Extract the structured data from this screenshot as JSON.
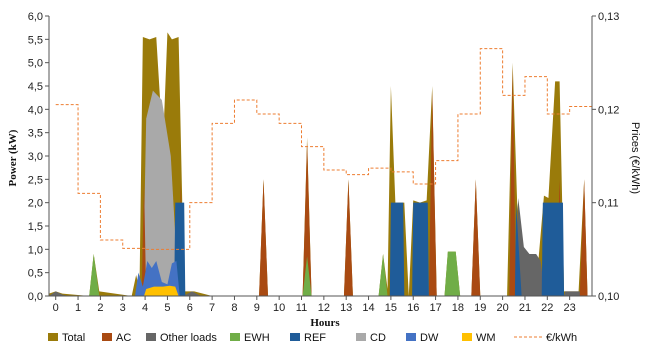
{
  "chart_data": {
    "type": "area",
    "title": "",
    "xlabel": "Hours",
    "ylabel": "Power (kW)",
    "y2label": "Prices (€/kWh)",
    "xlim": [
      -0.3,
      24.0
    ],
    "ylim": [
      0,
      6.0
    ],
    "y2lim": [
      0.1,
      0.13
    ],
    "xticks": [
      0,
      1,
      2,
      3,
      4,
      5,
      6,
      7,
      8,
      9,
      10,
      11,
      12,
      13,
      14,
      15,
      16,
      17,
      18,
      19,
      20,
      21,
      22,
      23
    ],
    "yticks": [
      0,
      0.5,
      1,
      1.5,
      2,
      2.5,
      3,
      3.5,
      4,
      4.5,
      5,
      5.5,
      6
    ],
    "ytick_labels": [
      "0,0",
      "0,5",
      "1,0",
      "1,5",
      "2,0",
      "2,5",
      "3,0",
      "3,5",
      "4,0",
      "4,5",
      "5,0",
      "5,5",
      "6,0"
    ],
    "y2ticks": [
      0.1,
      0.11,
      0.12,
      0.13
    ],
    "y2tick_labels": [
      "0,10",
      "0,11",
      "0,12",
      "0,13"
    ],
    "grid": false,
    "legend_position": "bottom",
    "series": [
      {
        "name": "Total",
        "kind": "area",
        "axis": "left",
        "color": "#9A7B0A",
        "points": [
          [
            -0.3,
            0.05
          ],
          [
            0,
            0.1
          ],
          [
            0.3,
            0.05
          ],
          [
            1.5,
            0
          ],
          [
            1.7,
            0.9
          ],
          [
            1.95,
            0.1
          ],
          [
            3.4,
            0
          ],
          [
            3.6,
            0.45
          ],
          [
            3.75,
            0.15
          ],
          [
            3.9,
            5.55
          ],
          [
            4.2,
            5.5
          ],
          [
            4.5,
            5.55
          ],
          [
            4.8,
            3.2
          ],
          [
            5.0,
            5.65
          ],
          [
            5.2,
            5.5
          ],
          [
            5.5,
            5.55
          ],
          [
            5.75,
            0.1
          ],
          [
            6.2,
            0.1
          ],
          [
            7.0,
            0
          ],
          [
            9.1,
            0
          ],
          [
            9.3,
            2.5
          ],
          [
            9.5,
            0
          ],
          [
            11.05,
            0
          ],
          [
            11.25,
            3.4
          ],
          [
            11.45,
            0
          ],
          [
            12.9,
            0
          ],
          [
            13.1,
            2.5
          ],
          [
            13.3,
            0
          ],
          [
            14.45,
            0
          ],
          [
            14.65,
            0.9
          ],
          [
            14.85,
            0.15
          ],
          [
            15.0,
            4.5
          ],
          [
            15.2,
            2.0
          ],
          [
            15.6,
            2.0
          ],
          [
            15.8,
            0
          ],
          [
            16.0,
            2.05
          ],
          [
            16.3,
            2.0
          ],
          [
            16.6,
            2.05
          ],
          [
            16.85,
            4.5
          ],
          [
            17.05,
            0
          ],
          [
            17.4,
            0
          ],
          [
            17.55,
            0.95
          ],
          [
            17.9,
            0.95
          ],
          [
            18.1,
            0
          ],
          [
            18.6,
            0
          ],
          [
            18.8,
            2.5
          ],
          [
            19.0,
            0
          ],
          [
            20.2,
            0
          ],
          [
            20.45,
            5.0
          ],
          [
            20.65,
            2.0
          ],
          [
            20.85,
            1.05
          ],
          [
            21.1,
            0.9
          ],
          [
            21.4,
            0.9
          ],
          [
            21.6,
            0.75
          ],
          [
            21.85,
            2.15
          ],
          [
            22.05,
            2.1
          ],
          [
            22.35,
            4.6
          ],
          [
            22.55,
            4.6
          ],
          [
            22.75,
            0.1
          ],
          [
            23.4,
            0.1
          ],
          [
            23.65,
            2.5
          ],
          [
            23.8,
            0
          ]
        ]
      },
      {
        "name": "CD",
        "kind": "area",
        "axis": "left",
        "color": "#A9A9A9",
        "points": [
          [
            3.9,
            0.1
          ],
          [
            4.05,
            3.8
          ],
          [
            4.35,
            4.4
          ],
          [
            4.75,
            4.2
          ],
          [
            5.15,
            3.0
          ],
          [
            5.35,
            1.3
          ],
          [
            5.45,
            0.1
          ]
        ]
      },
      {
        "name": "Other loads",
        "kind": "area",
        "axis": "left",
        "color": "#666666",
        "points": [
          [
            -0.3,
            0
          ],
          [
            0,
            0.1
          ],
          [
            0.3,
            0.03
          ],
          [
            0.6,
            0
          ],
          [
            5.7,
            0
          ],
          [
            6.1,
            0.1
          ],
          [
            6.5,
            0
          ],
          [
            20.5,
            0
          ],
          [
            20.7,
            2.1
          ],
          [
            20.95,
            1.05
          ],
          [
            21.2,
            0.9
          ],
          [
            21.5,
            0.9
          ],
          [
            21.7,
            0.75
          ],
          [
            21.9,
            0
          ],
          [
            22.75,
            0
          ],
          [
            22.8,
            0.1
          ],
          [
            23.45,
            0.1
          ],
          [
            23.5,
            0
          ]
        ]
      },
      {
        "name": "AC",
        "kind": "area",
        "axis": "left",
        "color": "#A94A12",
        "points": [
          [
            3.85,
            0
          ],
          [
            3.95,
            2.5
          ],
          [
            4.05,
            0
          ],
          [
            5.5,
            0
          ],
          [
            5.6,
            2.5
          ],
          [
            5.7,
            0
          ],
          [
            9.1,
            0
          ],
          [
            9.3,
            2.5
          ],
          [
            9.5,
            0
          ],
          [
            11.05,
            0
          ],
          [
            11.25,
            3.3
          ],
          [
            11.45,
            0
          ],
          [
            12.9,
            0
          ],
          [
            13.1,
            2.5
          ],
          [
            13.3,
            0
          ],
          [
            16.7,
            0
          ],
          [
            16.85,
            4.4
          ],
          [
            17.05,
            0
          ],
          [
            18.6,
            0
          ],
          [
            18.8,
            2.5
          ],
          [
            19.0,
            0
          ],
          [
            20.3,
            0
          ],
          [
            20.45,
            4.9
          ],
          [
            20.6,
            0
          ],
          [
            22.4,
            0
          ],
          [
            22.55,
            2.5
          ],
          [
            22.7,
            0
          ],
          [
            23.45,
            0
          ],
          [
            23.65,
            2.5
          ],
          [
            23.8,
            0
          ]
        ]
      },
      {
        "name": "REF",
        "kind": "area",
        "axis": "left",
        "color": "#1F5C99",
        "points": [
          [
            5.3,
            0
          ],
          [
            5.35,
            2.0
          ],
          [
            5.75,
            2.0
          ],
          [
            5.8,
            0
          ],
          [
            14.95,
            0
          ],
          [
            15.0,
            2.0
          ],
          [
            15.55,
            2.0
          ],
          [
            15.6,
            0
          ],
          [
            15.95,
            0
          ],
          [
            16.0,
            2.0
          ],
          [
            16.65,
            2.0
          ],
          [
            16.7,
            0
          ],
          [
            20.55,
            0
          ],
          [
            20.6,
            2.0
          ],
          [
            20.85,
            0
          ],
          [
            21.75,
            0
          ],
          [
            21.8,
            2.0
          ],
          [
            22.7,
            2.0
          ],
          [
            22.75,
            0
          ]
        ]
      },
      {
        "name": "DW",
        "kind": "area",
        "axis": "left",
        "color": "#4472C4",
        "points": [
          [
            3.55,
            0
          ],
          [
            3.7,
            0.5
          ],
          [
            3.9,
            0.2
          ],
          [
            4.1,
            0.75
          ],
          [
            4.3,
            0.6
          ],
          [
            4.5,
            0.75
          ],
          [
            4.75,
            0.3
          ],
          [
            5.0,
            0.25
          ],
          [
            5.2,
            0.7
          ],
          [
            5.4,
            0.75
          ],
          [
            5.55,
            0
          ]
        ]
      },
      {
        "name": "EWH",
        "kind": "area",
        "axis": "left",
        "color": "#70AD47",
        "points": [
          [
            1.5,
            0
          ],
          [
            1.7,
            0.9
          ],
          [
            1.95,
            0
          ],
          [
            11.05,
            0
          ],
          [
            11.25,
            0.85
          ],
          [
            11.45,
            0
          ],
          [
            14.45,
            0
          ],
          [
            14.65,
            0.9
          ],
          [
            14.85,
            0
          ],
          [
            17.4,
            0
          ],
          [
            17.55,
            0.95
          ],
          [
            17.9,
            0.95
          ],
          [
            18.1,
            0
          ]
        ]
      },
      {
        "name": "WM",
        "kind": "area",
        "axis": "left",
        "color": "#FFC000",
        "points": [
          [
            3.95,
            0
          ],
          [
            4.05,
            0.15
          ],
          [
            4.4,
            0.2
          ],
          [
            4.8,
            0.2
          ],
          [
            5.1,
            0.22
          ],
          [
            5.35,
            0.2
          ],
          [
            5.5,
            0
          ]
        ]
      },
      {
        "name": "€/kWh",
        "kind": "line",
        "axis": "right",
        "color": "#ED7D31",
        "points": [
          [
            0,
            0.1205
          ],
          [
            1,
            0.1205
          ],
          [
            1,
            0.111
          ],
          [
            2,
            0.111
          ],
          [
            2,
            0.106
          ],
          [
            3,
            0.106
          ],
          [
            3,
            0.1051
          ],
          [
            4,
            0.1051
          ],
          [
            4,
            0.105
          ],
          [
            6,
            0.105
          ],
          [
            6,
            0.11
          ],
          [
            7,
            0.11
          ],
          [
            7,
            0.1185
          ],
          [
            8,
            0.1185
          ],
          [
            8,
            0.121
          ],
          [
            9,
            0.121
          ],
          [
            9,
            0.1195
          ],
          [
            10,
            0.1195
          ],
          [
            10,
            0.1185
          ],
          [
            11,
            0.1185
          ],
          [
            11,
            0.116
          ],
          [
            12,
            0.116
          ],
          [
            12,
            0.1135
          ],
          [
            13,
            0.1135
          ],
          [
            13,
            0.113
          ],
          [
            14,
            0.113
          ],
          [
            14,
            0.1137
          ],
          [
            15,
            0.1137
          ],
          [
            15,
            0.1133
          ],
          [
            16,
            0.1133
          ],
          [
            16,
            0.112
          ],
          [
            17,
            0.112
          ],
          [
            17,
            0.1145
          ],
          [
            18,
            0.1145
          ],
          [
            18,
            0.1195
          ],
          [
            19,
            0.1195
          ],
          [
            19,
            0.1265
          ],
          [
            20,
            0.1265
          ],
          [
            20,
            0.1215
          ],
          [
            21,
            0.1215
          ],
          [
            21,
            0.1235
          ],
          [
            22,
            0.1235
          ],
          [
            22,
            0.1195
          ],
          [
            23,
            0.1195
          ],
          [
            23,
            0.1203
          ],
          [
            24,
            0.1203
          ]
        ]
      }
    ],
    "legend": [
      {
        "label": "Total",
        "color": "#9A7B0A",
        "kind": "box"
      },
      {
        "label": "AC",
        "color": "#A94A12",
        "kind": "box"
      },
      {
        "label": "Other loads",
        "color": "#666666",
        "kind": "box"
      },
      {
        "label": "EWH",
        "color": "#70AD47",
        "kind": "box"
      },
      {
        "label": "REF",
        "color": "#1F5C99",
        "kind": "box"
      },
      {
        "label": "CD",
        "color": "#A9A9A9",
        "kind": "box"
      },
      {
        "label": "DW",
        "color": "#4472C4",
        "kind": "box"
      },
      {
        "label": "WM",
        "color": "#FFC000",
        "kind": "box"
      },
      {
        "label": "€/kWh",
        "color": "#ED7D31",
        "kind": "dash"
      }
    ]
  }
}
